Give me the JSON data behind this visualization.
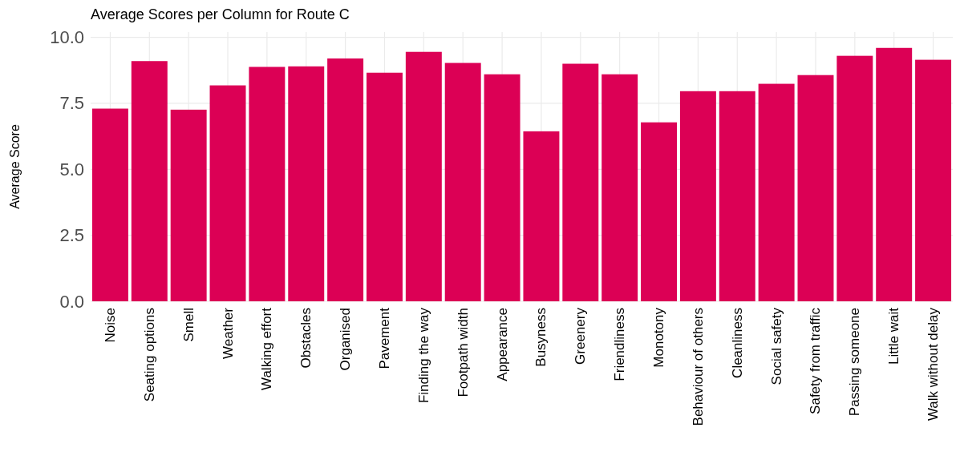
{
  "chart_data": {
    "type": "bar",
    "title": "Average Scores per Column for Route C",
    "ylabel": "Average Score",
    "categories": [
      "Noise",
      "Seating options",
      "Smell",
      "Weather",
      "Walking effort",
      "Obstacles",
      "Organised",
      "Pavement",
      "Finding the way",
      "Footpath width",
      "Appearance",
      "Busyness",
      "Greenery",
      "Friendliness",
      "Monotony",
      "Behaviour of others",
      "Cleanliness",
      "Social safety",
      "Safety from traffic",
      "Passing someone",
      "Little wait",
      "Walk without delay"
    ],
    "values": [
      7.3,
      9.1,
      7.26,
      8.18,
      8.88,
      8.9,
      9.2,
      8.66,
      9.45,
      9.03,
      8.6,
      6.44,
      9.0,
      8.6,
      6.78,
      7.96,
      7.96,
      8.24,
      8.57,
      9.3,
      9.6,
      9.15
    ],
    "color": "#dc0055",
    "ylim": [
      0,
      10.2
    ],
    "yticks": [
      {
        "value": 0,
        "label": "0.0"
      },
      {
        "value": 2.5,
        "label": "2.5"
      },
      {
        "value": 5,
        "label": "5.0"
      },
      {
        "value": 7.5,
        "label": "7.5"
      },
      {
        "value": 10,
        "label": "10.0"
      }
    ],
    "grid": true
  }
}
